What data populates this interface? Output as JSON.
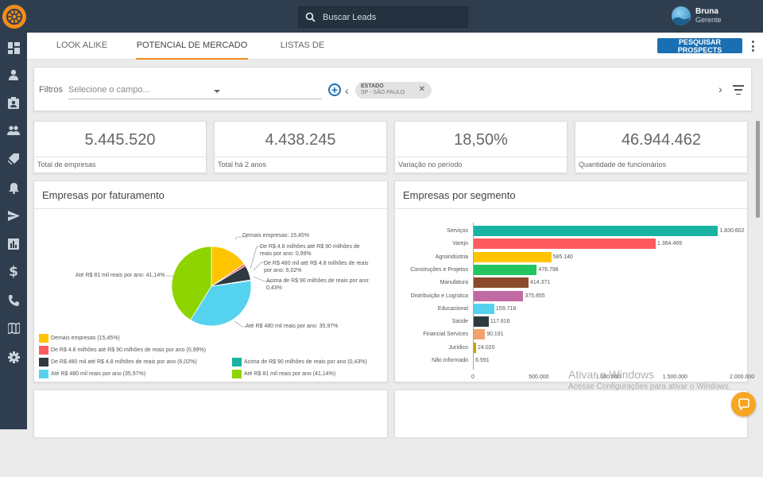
{
  "app": {
    "search_placeholder": "Buscar Leads",
    "user": {
      "name": "Bruna",
      "role": "Gerente"
    }
  },
  "sidebar": {
    "items": [
      {
        "icon": "dashboard-icon"
      },
      {
        "icon": "person-icon"
      },
      {
        "icon": "contact-card-icon"
      },
      {
        "icon": "people-icon"
      },
      {
        "icon": "tag-icon"
      },
      {
        "icon": "bell-icon"
      },
      {
        "icon": "send-icon"
      },
      {
        "icon": "chart-icon"
      },
      {
        "icon": "dollar-icon"
      },
      {
        "icon": "phone-icon"
      },
      {
        "icon": "map-icon"
      },
      {
        "icon": "gear-icon"
      }
    ]
  },
  "tabs": [
    {
      "label": "LOOK ALIKE"
    },
    {
      "label": "POTENCIAL DE MERCADO"
    },
    {
      "label": "LISTAS DE PROSPECTS"
    }
  ],
  "actions": {
    "pesquisar": "PESQUISAR PROSPECTS"
  },
  "filters": {
    "label": "Filtros",
    "select_placeholder": "Selecione o campo...",
    "chip_title": "ESTADO",
    "chip_value": "SP - SÃO PAULO"
  },
  "kpis": [
    {
      "value": "5.445.520",
      "label": "Total de empresas"
    },
    {
      "value": "4.438.245",
      "label": "Total há 2 anos"
    },
    {
      "value": "18,50%",
      "label": "Variação no período"
    },
    {
      "value": "46.944.462",
      "label": "Quantidade de funcionários"
    }
  ],
  "pie": {
    "title": "Empresas por faturamento",
    "labels": {
      "demais": "Demais empresas: 15,45%",
      "d48": "De R$ 4.8 milhões até R$ 90 milhões de reais por ano: 0,99%",
      "d480": "De R$ 480 mil até R$ 4.8 milhões de reais por ano: 6,02%",
      "acima90": "Acima de R$ 90 milhões de reais por ano: 0,43%",
      "ate480": "Até R$ 480 mil reais por ano: 35,97%",
      "ate81": "Até R$ 81 mil reais por ano: 41,14%"
    },
    "legend": [
      {
        "label": "Demais empresas  (15,45%)",
        "color": "#ffc400"
      },
      {
        "label": "De R$ 4.8 milhões até R$ 90 milhões de reais por ano  (0,99%)",
        "color": "#ff5a5f"
      },
      {
        "label": "De R$ 480 mil até R$ 4.8 milhões de reais por ano  (6,02%)",
        "color": "#2d3a3f"
      },
      {
        "label": "Acima de R$ 90 milhões de reais por ano  (0,43%)",
        "color": "#17b3a3"
      },
      {
        "label": "Até R$ 480 mil reais por ano  (35,97%)",
        "color": "#55d3ee"
      },
      {
        "label": "Até R$ 81 mil reais por ano  (41,14%)",
        "color": "#8ed400"
      }
    ]
  },
  "bar": {
    "title": "Empresas por segmento",
    "x_ticks": [
      "0",
      "500.000",
      "1.000.000",
      "1.500.000",
      "2.000.000"
    ]
  },
  "chart_data": [
    {
      "type": "pie",
      "title": "Empresas por faturamento",
      "slices": [
        {
          "label": "Demais empresas",
          "value": 15.45,
          "color": "#ffc400"
        },
        {
          "label": "De R$ 4.8 milhões até R$ 90 milhões de reais por ano",
          "value": 0.99,
          "color": "#ff5a5f"
        },
        {
          "label": "De R$ 480 mil até R$ 4.8 milhões de reais por ano",
          "value": 6.02,
          "color": "#2d3a3f"
        },
        {
          "label": "Acima de R$ 90 milhões de reais por ano",
          "value": 0.43,
          "color": "#17b3a3"
        },
        {
          "label": "Até R$ 480 mil reais por ano",
          "value": 35.97,
          "color": "#55d3ee"
        },
        {
          "label": "Até R$ 81 mil reais por ano",
          "value": 41.14,
          "color": "#8ed400"
        }
      ]
    },
    {
      "type": "bar",
      "orientation": "horizontal",
      "title": "Empresas por segmento",
      "xlim": [
        0,
        2000000
      ],
      "bars": [
        {
          "category": "Serviços",
          "value": 1830602,
          "label": "1.830.602",
          "color": "#17b3a3"
        },
        {
          "category": "Varejo",
          "value": 1364469,
          "label": "1.364.469",
          "color": "#ff5a5f"
        },
        {
          "category": "Agroindústria",
          "value": 585140,
          "label": "585.140",
          "color": "#ffc400"
        },
        {
          "category": "Construções e Projetos",
          "value": 476798,
          "label": "476.798",
          "color": "#22c55e"
        },
        {
          "category": "Manufatura",
          "value": 414371,
          "label": "414.371",
          "color": "#8b4a2b"
        },
        {
          "category": "Distribuição e Logística",
          "value": 375855,
          "label": "375.855",
          "color": "#c06aa3"
        },
        {
          "category": "Educacional",
          "value": 159718,
          "label": "159.718",
          "color": "#55d3ee"
        },
        {
          "category": "Saúde",
          "value": 117616,
          "label": "117.616",
          "color": "#2d3a3f"
        },
        {
          "category": "Financial Services",
          "value": 90191,
          "label": "90.191",
          "color": "#f4a06b"
        },
        {
          "category": "Jurídico",
          "value": 24020,
          "label": "24.020",
          "color": "#c8a200"
        },
        {
          "category": "Não informado",
          "value": 6591,
          "label": "6.591",
          "color": "#9aa0a6"
        }
      ]
    }
  ],
  "watermark": {
    "line1": "Ativar o Windows",
    "line2": "Acesse Configurações para ativar o Windows."
  }
}
